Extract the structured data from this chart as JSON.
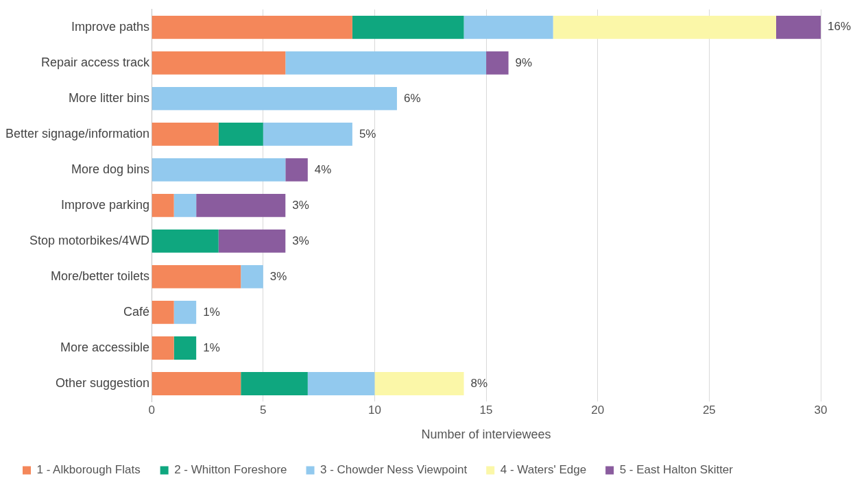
{
  "chart_data": {
    "type": "bar",
    "orientation": "horizontal",
    "stacked": true,
    "categories": [
      "Improve paths",
      "Repair access track",
      "More litter bins",
      "Better signage/information",
      "More dog bins",
      "Improve parking",
      "Stop motorbikes/4WD",
      "More/better toilets",
      "Café",
      "More accessible",
      "Other suggestion"
    ],
    "series": [
      {
        "name": "1 - Alkborough Flats",
        "color": "#f4875a",
        "values": [
          9,
          6,
          null,
          3,
          null,
          1,
          null,
          4,
          1,
          1,
          4
        ]
      },
      {
        "name": "2 - Whitton Foreshore",
        "color": "#0fa77f",
        "values": [
          5,
          null,
          null,
          2,
          null,
          null,
          3,
          null,
          null,
          1,
          3
        ]
      },
      {
        "name": "3 - Chowder Ness Viewpoint",
        "color": "#92c9ee",
        "values": [
          4,
          9,
          11,
          4,
          6,
          1,
          null,
          1,
          1,
          null,
          3
        ]
      },
      {
        "name": "4 - Waters' Edge",
        "color": "#fbf7a8",
        "values": [
          10,
          null,
          null,
          null,
          null,
          null,
          null,
          null,
          null,
          null,
          4
        ]
      },
      {
        "name": "5 - East Halton Skitter",
        "color": "#8a5c9e",
        "values": [
          2,
          1,
          null,
          null,
          1,
          4,
          3,
          null,
          null,
          null,
          null
        ]
      }
    ],
    "annotations": [
      {
        "text": "16%",
        "x": 30,
        "y": "Improve paths"
      },
      {
        "text": "9%",
        "x": 16,
        "y": "Repair access track"
      },
      {
        "text": "6%",
        "x": 11,
        "y": "More litter bins"
      },
      {
        "text": "5%",
        "x": 9,
        "y": "Better signage/information"
      },
      {
        "text": "4%",
        "x": 7,
        "y": "More dog bins"
      },
      {
        "text": "3%",
        "x": 6,
        "y": "Improve parking"
      },
      {
        "text": "3%",
        "x": 6,
        "y": "Stop motorbikes/4WD"
      },
      {
        "text": "3%",
        "x": 5,
        "y": "More/better toilets"
      },
      {
        "text": "1%",
        "x": 2,
        "y": "Café"
      },
      {
        "text": "1%",
        "x": 2,
        "y": "More accessible"
      },
      {
        "text": "8%",
        "x": 14,
        "y": "Other suggestion"
      }
    ],
    "xlabel": "Number of interviewees",
    "xlim": [
      0,
      30
    ],
    "xticks": [
      0,
      5,
      10,
      15,
      20,
      25,
      30
    ],
    "grid": "x",
    "legend": "bottom"
  }
}
